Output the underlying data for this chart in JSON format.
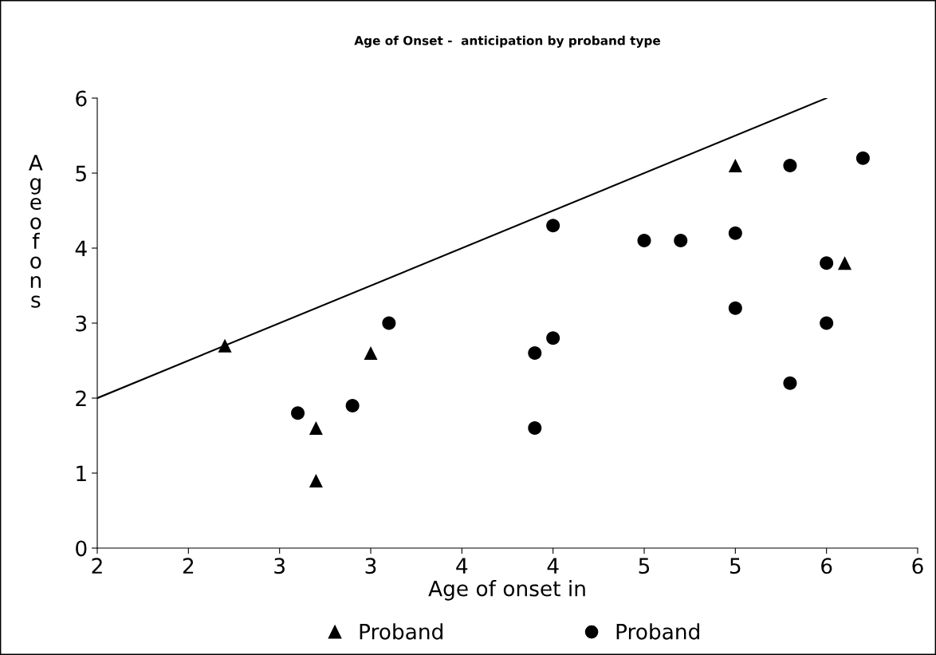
{
  "chart_data": {
    "type": "scatter",
    "title": "Age of Onset -  anticipation by proband type",
    "xlabel": "Age of onset in",
    "ylabel": "Ageofons",
    "xlim": [
      2,
      6.5
    ],
    "ylim": [
      0,
      6
    ],
    "xticks": [
      {
        "value": 2,
        "label": "2"
      },
      {
        "value": 2.5,
        "label": "2"
      },
      {
        "value": 3,
        "label": "3"
      },
      {
        "value": 3.5,
        "label": "3"
      },
      {
        "value": 4,
        "label": "4"
      },
      {
        "value": 4.5,
        "label": "4"
      },
      {
        "value": 5,
        "label": "5"
      },
      {
        "value": 5.5,
        "label": "5"
      },
      {
        "value": 6,
        "label": "6"
      },
      {
        "value": 6.5,
        "label": "6"
      }
    ],
    "yticks": [
      0,
      1,
      2,
      3,
      4,
      5,
      6
    ],
    "grid": false,
    "legend": "bottom",
    "series": [
      {
        "name": "Proband",
        "color": "#000000",
        "marker": "triangle",
        "x": [
          2.7,
          3.5,
          3.2,
          3.2,
          5.5,
          6.1
        ],
        "values": [
          2.7,
          2.6,
          1.6,
          0.9,
          5.1,
          3.8
        ]
      },
      {
        "name": "Proband",
        "color": "#000000",
        "marker": "circle",
        "x": [
          3.6,
          3.1,
          3.4,
          4.5,
          5.0,
          5.2,
          5.5,
          5.8,
          6.2,
          6.0,
          5.5,
          6.0,
          5.8,
          4.5,
          4.4,
          4.4
        ],
        "values": [
          3.0,
          1.8,
          1.9,
          4.3,
          4.1,
          4.1,
          4.2,
          5.1,
          5.2,
          3.8,
          3.2,
          3.0,
          2.2,
          2.8,
          2.6,
          1.6
        ]
      },
      {
        "type": "line",
        "color": "#000000",
        "line_style": "solid",
        "x": [
          2,
          6
        ],
        "values": [
          2,
          6
        ]
      }
    ]
  }
}
